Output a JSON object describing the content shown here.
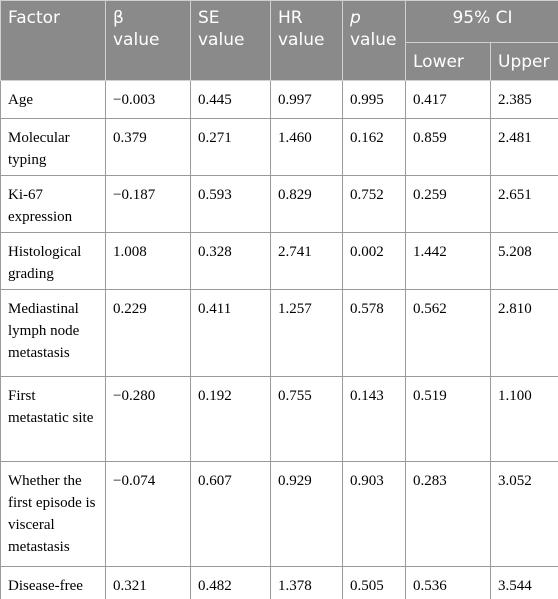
{
  "header": {
    "factor": "Factor",
    "beta": "β value",
    "se": "SE value",
    "hr": "HR value",
    "p_symbol": "p",
    "p_suffix": "value",
    "ci": "95% CI",
    "lower": "Lower",
    "upper": "Upper"
  },
  "table": {
    "rows": [
      [
        "Age",
        "−0.003",
        "0.445",
        "0.997",
        "0.995",
        "0.417",
        "2.385"
      ],
      [
        "Molecular typing",
        "0.379",
        "0.271",
        "1.460",
        "0.162",
        "0.859",
        "2.481"
      ],
      [
        "Ki-67 expression",
        "−0.187",
        "0.593",
        "0.829",
        "0.752",
        "0.259",
        "2.651"
      ],
      [
        "Histological grading",
        "1.008",
        "0.328",
        "2.741",
        "0.002",
        "1.442",
        "5.208"
      ],
      [
        "Mediastinal lymph node metastasis",
        "0.229",
        "0.411",
        "1.257",
        "0.578",
        "0.562",
        "2.810"
      ],
      [
        "First metastatic site",
        "−0.280",
        "0.192",
        "0.755",
        "0.143",
        "0.519",
        "1.100"
      ],
      [
        "Whether the first episode is visceral metastasis",
        "−0.074",
        "0.607",
        "0.929",
        "0.903",
        "0.283",
        "3.052"
      ],
      [
        "Disease-free interval",
        "0.321",
        "0.482",
        "1.378",
        "0.505",
        "0.536",
        "3.544"
      ]
    ]
  }
}
